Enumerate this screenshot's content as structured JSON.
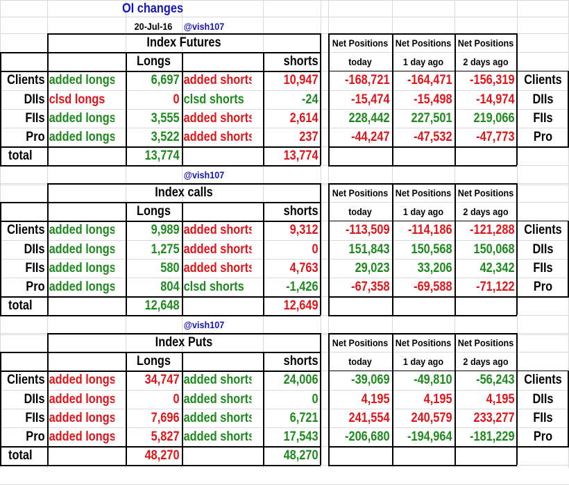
{
  "header": {
    "title": "OI changes",
    "date": "20-Jul-16",
    "handle": "@vish107"
  },
  "labels": {
    "longs": "Longs",
    "shorts": "shorts",
    "total": "total",
    "net_positions": "Net Positions",
    "today": "today",
    "one_day_ago": "1 day ago",
    "two_days_ago": "2 days ago"
  },
  "colors": {
    "positive": "#1e8a1e",
    "negative": "#e0151a",
    "title": "#1616b8",
    "text": "#000000",
    "grid": "#d9d9d9"
  },
  "sections": [
    {
      "title": "Index Futures",
      "handle": "",
      "rows": [
        {
          "category": "Clients",
          "long_label": "added longs",
          "long_value": "6,697",
          "long_color": "g",
          "short_label": "added shorts",
          "short_value": "10,947",
          "short_color": "r",
          "net_today": "-168,721",
          "net_1d": "-164,471",
          "net_2d": "-156,319",
          "net_color": "r",
          "right_label": "Clients"
        },
        {
          "category": "DIIs",
          "long_label": "clsd longs",
          "long_value": "0",
          "long_color": "r",
          "short_label": "clsd shorts",
          "short_value": "-24",
          "short_color": "g",
          "net_today": "-15,474",
          "net_1d": "-15,498",
          "net_2d": "-14,974",
          "net_color": "r",
          "right_label": "DIIs"
        },
        {
          "category": "FIIs",
          "long_label": "added longs",
          "long_value": "3,555",
          "long_color": "g",
          "short_label": "added shorts",
          "short_value": "2,614",
          "short_color": "r",
          "net_today": "228,442",
          "net_1d": "227,501",
          "net_2d": "219,066",
          "net_color": "g",
          "right_label": "FIIs"
        },
        {
          "category": "Pro",
          "long_label": "added longs",
          "long_value": "3,522",
          "long_color": "g",
          "short_label": "added shorts",
          "short_value": "237",
          "short_color": "r",
          "net_today": "-44,247",
          "net_1d": "-47,532",
          "net_2d": "-47,773",
          "net_color": "r",
          "right_label": "Pro"
        }
      ],
      "total_longs": "13,774",
      "total_longs_color": "g",
      "total_shorts": "13,774",
      "total_shorts_color": "r"
    },
    {
      "title": "Index calls",
      "handle": "@vish107",
      "rows": [
        {
          "category": "Clients",
          "long_label": "added longs",
          "long_value": "9,989",
          "long_color": "g",
          "short_label": "added shorts",
          "short_value": "9,312",
          "short_color": "r",
          "net_today": "-113,509",
          "net_1d": "-114,186",
          "net_2d": "-121,288",
          "net_color": "r",
          "right_label": "Clients"
        },
        {
          "category": "DIIs",
          "long_label": "added longs",
          "long_value": "1,275",
          "long_color": "g",
          "short_label": "added shorts",
          "short_value": "0",
          "short_color": "r",
          "net_today": "151,843",
          "net_1d": "150,568",
          "net_2d": "150,068",
          "net_color": "g",
          "right_label": "DIIs"
        },
        {
          "category": "FIIs",
          "long_label": "added longs",
          "long_value": "580",
          "long_color": "g",
          "short_label": "added shorts",
          "short_value": "4,763",
          "short_color": "r",
          "net_today": "29,023",
          "net_1d": "33,206",
          "net_2d": "42,342",
          "net_color": "g",
          "right_label": "FIIs"
        },
        {
          "category": "Pro",
          "long_label": "added longs",
          "long_value": "804",
          "long_color": "g",
          "short_label": "clsd shorts",
          "short_value": "-1,426",
          "short_color": "g",
          "net_today": "-67,358",
          "net_1d": "-69,588",
          "net_2d": "-71,122",
          "net_color": "r",
          "right_label": "Pro"
        }
      ],
      "total_longs": "12,648",
      "total_longs_color": "g",
      "total_shorts": "12,649",
      "total_shorts_color": "r"
    },
    {
      "title": "Index Puts",
      "handle": "@vish107",
      "rows": [
        {
          "category": "Clients",
          "long_label": "added longs",
          "long_value": "34,747",
          "long_color": "r",
          "short_label": "added shorts",
          "short_value": "24,006",
          "short_color": "g",
          "net_today": "-39,069",
          "net_1d": "-49,810",
          "net_2d": "-56,243",
          "net_color": "g",
          "right_label": "Clients"
        },
        {
          "category": "DIIs",
          "long_label": "added longs",
          "long_value": "0",
          "long_color": "r",
          "short_label": "added shorts",
          "short_value": "0",
          "short_color": "g",
          "net_today": "4,195",
          "net_1d": "4,195",
          "net_2d": "4,195",
          "net_color": "r",
          "right_label": "DIIs"
        },
        {
          "category": "FIIs",
          "long_label": "added longs",
          "long_value": "7,696",
          "long_color": "r",
          "short_label": "added shorts",
          "short_value": "6,721",
          "short_color": "g",
          "net_today": "241,554",
          "net_1d": "240,579",
          "net_2d": "233,277",
          "net_color": "r",
          "right_label": "FIIs"
        },
        {
          "category": "Pro",
          "long_label": "added longs",
          "long_value": "5,827",
          "long_color": "r",
          "short_label": "added shorts",
          "short_value": "17,543",
          "short_color": "g",
          "net_today": "-206,680",
          "net_1d": "-194,964",
          "net_2d": "-181,229",
          "net_color": "g",
          "right_label": "Pro"
        }
      ],
      "total_longs": "48,270",
      "total_longs_color": "r",
      "total_shorts": "48,270",
      "total_shorts_color": "g"
    }
  ]
}
